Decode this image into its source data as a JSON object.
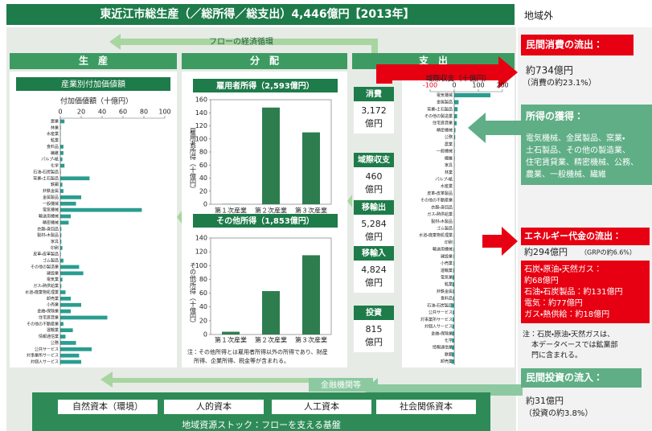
{
  "header": {
    "title": "東近江市総生産（／総所得／総支出）4,446億円【2013年】",
    "outside": "地域外"
  },
  "flow_label": "フローの経済循環",
  "sections": [
    "生　産",
    "分　配",
    "支　出"
  ],
  "middle": [
    {
      "label": "消費",
      "value": "3,172",
      "unit": "億円"
    },
    {
      "label": "域際収支",
      "value": "460",
      "unit": "億円"
    },
    {
      "label": "移輸出",
      "value": "5,284",
      "unit": "億円"
    },
    {
      "label": "移輸入",
      "value": "4,824",
      "unit": "億円"
    },
    {
      "label": "投資",
      "value": "815",
      "unit": "億円"
    }
  ],
  "panels": {
    "consumption_outflow": {
      "heading": "民間消費の流出：",
      "amount": "約734億円",
      "share": "（消費の約23.1%）"
    },
    "income_gain": {
      "heading": "所得の獲得：",
      "lines": [
        "電気機械、金属製品、窯業・",
        "土石製品、その他の製造業、",
        "住宅賃貸業、精密機械、公務、",
        "農業、一般機械、繊維"
      ]
    },
    "energy_outflow": {
      "heading": "エネルギー代金の流出：",
      "amount": "約294億円",
      "share": "（GRPの約6.6%）",
      "items": [
        "石炭・原油・天然ガス：",
        "約68億円",
        "石油・石炭製品：約131億円",
        "電気：約77億円",
        "ガス・熱供給：約18億円"
      ]
    },
    "energy_note": [
      "注：石炭・原油・天然ガスは、",
      "本データベースでは鉱業部",
      "門に含まれる。"
    ],
    "investment_inflow": {
      "heading": "民間投資の流入：",
      "amount": "約31億円",
      "share": "（投資の約3.8%）"
    }
  },
  "finance_label": "金融機関等",
  "stocks": [
    "自然資本（環境）",
    "人的資本",
    "人工資本",
    "社会関係資本"
  ],
  "stock_caption": "地域資源ストック：フローを支える基盤",
  "chart_data": [
    {
      "type": "barh",
      "title": "産業別付加価値額",
      "xlabel": "付加価値額（十億円）",
      "color": "#2a9d8f",
      "xlim": [
        0,
        100
      ],
      "xticks": [
        0,
        20,
        40,
        60,
        80,
        100
      ],
      "categories": [
        "農業",
        "林業",
        "水産業",
        "鉱業",
        "食料品",
        "繊維",
        "パルプ・紙",
        "化学",
        "石油・石炭製品",
        "窯業・土石製品",
        "鉄鋼",
        "非鉄金属",
        "金属製品",
        "一般機械",
        "電気機械",
        "輸送用機械",
        "精密機械",
        "衣服・身回品",
        "製材・木製品",
        "家具",
        "印刷",
        "皮革・皮革製品",
        "ゴム製品",
        "その他の製造業",
        "建設業",
        "電気業",
        "ガス・熱供給業",
        "水道・廃棄物処理業",
        "卸売業",
        "小売業",
        "金融・保険業",
        "住宅賃貸業",
        "その他の不動産業",
        "運輸業",
        "情報通信業",
        "公務",
        "公共サービス",
        "対事業所サービス",
        "対個人サービス"
      ],
      "values": [
        4,
        0.5,
        0.3,
        0.3,
        3,
        3,
        2,
        4,
        0.5,
        28,
        2,
        3,
        20,
        15,
        78,
        10,
        8,
        1,
        1,
        1,
        2,
        0.5,
        3,
        18,
        22,
        2,
        1,
        5,
        10,
        20,
        10,
        45,
        3,
        12,
        5,
        15,
        30,
        18,
        20
      ]
    },
    {
      "type": "bar",
      "title": "雇用者所得（2,593億円）",
      "ylabel": "雇用者所得（十億円）",
      "color": "#2e7d4f",
      "ylim": [
        0,
        160
      ],
      "yticks": [
        0,
        20,
        40,
        60,
        80,
        100,
        120,
        140,
        160
      ],
      "categories": [
        "第１次産業",
        "第２次産業",
        "第３次産業"
      ],
      "values": [
        0.5,
        148,
        110
      ]
    },
    {
      "type": "bar",
      "title": "その他所得（1,853億円）",
      "ylabel": "その他所得（十億円）",
      "color": "#2e7d4f",
      "ylim": [
        0,
        140
      ],
      "yticks": [
        0,
        20,
        40,
        60,
        80,
        100,
        120,
        140
      ],
      "categories": [
        "第１次産業",
        "第２次産業",
        "第３次産業"
      ],
      "values": [
        4,
        63,
        115
      ],
      "note": [
        "注：その他所得とは雇用者所得以外の所得であり、財産",
        "所得、企業所得、税金等が含まれる。"
      ]
    },
    {
      "type": "barh",
      "xlabel": "域際収支（十億円）",
      "color": "#2a9d8f",
      "negative_tick_color": "#e60012",
      "xlim": [
        -100,
        200
      ],
      "xticks": [
        -100,
        0,
        100,
        200
      ],
      "categories": [
        "電気機械",
        "金属製品",
        "窯業・土石製品",
        "その他の製造業",
        "住宅賃貸業",
        "精密機械",
        "公務",
        "農業",
        "一般機械",
        "繊維",
        "家具",
        "林業",
        "パルプ・紙",
        "水産業",
        "皮革・皮革製品",
        "その他の不動産業",
        "衣服・身回品",
        "ガス・熱供給業",
        "製材・木製品",
        "ゴム製品",
        "水道・廃棄物処理業",
        "印刷",
        "輸送用機械",
        "建設業",
        "小売業",
        "運輸業",
        "電気業",
        "鉱業",
        "非鉄金属",
        "食料品",
        "石油・石炭製品",
        "公共サービス",
        "対事業所サービス",
        "対個人サービス",
        "金融・保険業",
        "化学",
        "情報通信業",
        "鉄鋼",
        "卸売業"
      ],
      "values": [
        150,
        18,
        14,
        12,
        10,
        5,
        4,
        2,
        2,
        2,
        1,
        0.5,
        0.5,
        -0.5,
        -0.5,
        -1,
        -1,
        -1.5,
        -1.5,
        -2,
        -2,
        -2,
        -3,
        -3,
        -3,
        -4,
        -7,
        -7,
        -5,
        -5,
        -13,
        -6,
        -7,
        -8,
        -8,
        -9,
        -10,
        -10,
        -12
      ]
    }
  ]
}
